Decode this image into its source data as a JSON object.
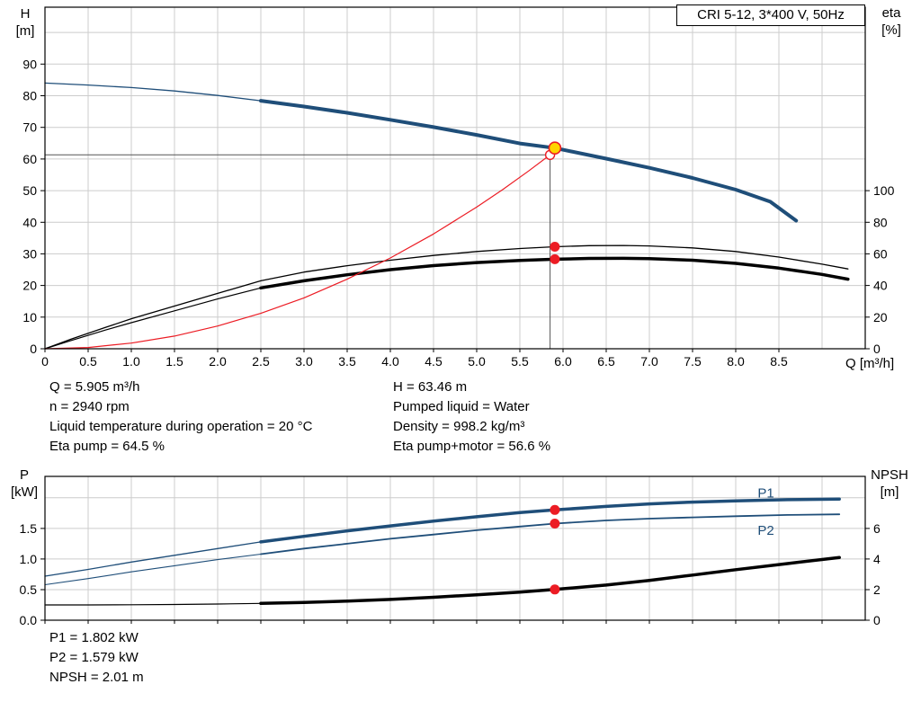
{
  "colors": {
    "blue": "#1f4e79",
    "black": "#000000",
    "red": "#ec1c24",
    "grid": "#cccccc",
    "frame": "#000000",
    "crosshair": "#555555",
    "duty_fill": "#ffd400",
    "white": "#ffffff"
  },
  "top_info": {
    "left": [
      "Q = 5.905 m³/h",
      "n = 2940 rpm",
      "Liquid temperature during operation = 20 °C",
      "Eta pump = 64.5 %"
    ],
    "right": [
      "H = 63.46 m",
      "Pumped liquid = Water",
      "Density = 998.2 kg/m³",
      "Eta pump+motor = 56.6 %"
    ]
  },
  "bottom_info": [
    "P1 = 1.802 kW",
    "P2 = 1.579 kW",
    "NPSH = 2.01 m"
  ],
  "chart_data": [
    {
      "type": "line",
      "title": "CRI 5-12, 3*400 V, 50Hz",
      "x_axis": {
        "label": "Q [m³/h]",
        "min": 0,
        "max": 9.5,
        "grid_step": 0.5,
        "ticks": [
          0,
          0.5,
          1,
          1.5,
          2,
          2.5,
          3,
          3.5,
          4,
          4.5,
          5,
          5.5,
          6,
          6.5,
          7,
          7.5,
          8,
          8.5
        ],
        "tick_labels": [
          "0",
          "0.5",
          "1.0",
          "1.5",
          "2.0",
          "2.5",
          "3.0",
          "3.5",
          "4.0",
          "4.5",
          "5.0",
          "5.5",
          "6.0",
          "6.5",
          "7.0",
          "7.5",
          "8.0",
          "8.5"
        ]
      },
      "left_axis": {
        "label_lines": [
          "H",
          "[m]"
        ],
        "min": 0,
        "max": 108,
        "ticks": [
          0,
          10,
          20,
          30,
          40,
          50,
          60,
          70,
          80,
          90
        ],
        "tick_labels": [
          "0",
          "10",
          "20",
          "30",
          "40",
          "50",
          "60",
          "70",
          "80",
          "90"
        ],
        "grid": [
          10,
          20,
          30,
          40,
          50,
          60,
          70,
          80,
          90,
          100
        ]
      },
      "right_axis": {
        "label_lines": [
          "eta",
          "[%]"
        ],
        "min": 0,
        "max": 216,
        "ticks": [
          0,
          20,
          40,
          60,
          80,
          100
        ],
        "tick_labels": [
          "0",
          "20",
          "40",
          "60",
          "80",
          "100"
        ]
      },
      "series": [
        {
          "name": "qh-curve-lead",
          "axis": "left",
          "color": "blue",
          "width": 1.3,
          "points": [
            [
              0,
              84
            ],
            [
              0.5,
              83.4
            ],
            [
              1,
              82.6
            ],
            [
              1.5,
              81.5
            ],
            [
              2,
              80.1
            ],
            [
              2.5,
              78.4
            ]
          ]
        },
        {
          "name": "qh-curve",
          "axis": "left",
          "color": "blue",
          "width": 4,
          "points": [
            [
              2.5,
              78.4
            ],
            [
              3,
              76.6
            ],
            [
              3.5,
              74.6
            ],
            [
              4,
              72.4
            ],
            [
              4.5,
              70.1
            ],
            [
              5,
              67.6
            ],
            [
              5.5,
              64.9
            ],
            [
              5.905,
              63.46
            ],
            [
              6.5,
              60.1
            ],
            [
              7,
              57.2
            ],
            [
              7.5,
              54
            ],
            [
              8,
              50.3
            ],
            [
              8.4,
              46.5
            ],
            [
              8.7,
              40.5
            ]
          ]
        },
        {
          "name": "eta-pump-curve",
          "axis": "right",
          "color": "black",
          "width": 1.3,
          "points": [
            [
              0,
              0
            ],
            [
              0.3,
              6
            ],
            [
              0.7,
              13.5
            ],
            [
              1,
              19
            ],
            [
              1.5,
              27
            ],
            [
              2,
              35
            ],
            [
              2.5,
              43
            ],
            [
              3,
              48.5
            ],
            [
              3.5,
              52.5
            ],
            [
              4,
              56
            ],
            [
              4.5,
              59
            ],
            [
              5,
              61.5
            ],
            [
              5.5,
              63.4
            ],
            [
              5.905,
              64.5
            ],
            [
              6.3,
              65.2
            ],
            [
              6.7,
              65.3
            ],
            [
              7,
              65
            ],
            [
              7.5,
              63.8
            ],
            [
              8,
              61.5
            ],
            [
              8.5,
              58
            ],
            [
              9,
              53.5
            ],
            [
              9.3,
              50.5
            ]
          ]
        },
        {
          "name": "eta-pump-motor-lead",
          "axis": "right",
          "color": "black",
          "width": 1.2,
          "points": [
            [
              0,
              0
            ],
            [
              0.3,
              5.2
            ],
            [
              0.7,
              11.8
            ],
            [
              1,
              16.5
            ],
            [
              1.5,
              24
            ],
            [
              2,
              31.5
            ],
            [
              2.5,
              38.5
            ]
          ]
        },
        {
          "name": "eta-pump-motor-curve",
          "axis": "right",
          "color": "black",
          "width": 3.5,
          "points": [
            [
              2.5,
              38.5
            ],
            [
              3,
              43
            ],
            [
              3.5,
              46.8
            ],
            [
              4,
              50
            ],
            [
              4.5,
              52.6
            ],
            [
              5,
              54.5
            ],
            [
              5.5,
              55.9
            ],
            [
              5.905,
              56.6
            ],
            [
              6.3,
              57.1
            ],
            [
              6.7,
              57.2
            ],
            [
              7,
              57
            ],
            [
              7.5,
              56
            ],
            [
              8,
              54
            ],
            [
              8.5,
              51
            ],
            [
              9,
              47
            ],
            [
              9.3,
              44
            ]
          ]
        },
        {
          "name": "system-curve",
          "axis": "left",
          "color": "red",
          "width": 1.2,
          "points": [
            [
              0,
              0
            ],
            [
              0.5,
              0.4
            ],
            [
              1,
              1.8
            ],
            [
              1.5,
              4
            ],
            [
              2,
              7.2
            ],
            [
              2.5,
              11.2
            ],
            [
              3,
              16.1
            ],
            [
              3.5,
              22
            ],
            [
              4,
              28.7
            ],
            [
              4.5,
              36.3
            ],
            [
              5,
              44.8
            ],
            [
              5.3,
              50.3
            ],
            [
              5.6,
              56.2
            ],
            [
              5.84,
              61.1
            ],
            [
              5.95,
              63
            ]
          ]
        }
      ],
      "crosshair": {
        "q": 5.85,
        "h": 61.3,
        "v_top": 63.46
      },
      "markers": [
        {
          "name": "system-intersection-marker",
          "axis": "left",
          "q": 5.85,
          "v": 61.3,
          "r": 5,
          "fill": "white",
          "stroke": "red",
          "stroke_width": 1.4
        },
        {
          "name": "duty-point-marker",
          "axis": "left",
          "q": 5.905,
          "v": 63.46,
          "r": 6.5,
          "fill": "duty_fill",
          "stroke": "red",
          "stroke_width": 1.6
        },
        {
          "name": "eta-pump-duty-dot",
          "axis": "right",
          "q": 5.905,
          "v": 64.5,
          "r": 5.5,
          "fill": "red",
          "stroke": "red",
          "stroke_width": 0
        },
        {
          "name": "eta-pump-motor-duty-dot",
          "axis": "right",
          "q": 5.905,
          "v": 56.6,
          "r": 5.5,
          "fill": "red",
          "stroke": "red",
          "stroke_width": 0
        }
      ],
      "series_labels": []
    },
    {
      "type": "line",
      "title": "",
      "x_axis": {
        "label": "",
        "min": 0,
        "max": 9.5,
        "grid_step": 0.5,
        "ticks": [
          0,
          0.5,
          1,
          1.5,
          2,
          2.5,
          3,
          3.5,
          4,
          4.5,
          5,
          5.5,
          6,
          6.5,
          7,
          7.5,
          8,
          8.5,
          9
        ],
        "tick_labels": []
      },
      "left_axis": {
        "label_lines": [
          "P",
          "[kW]"
        ],
        "min": 0,
        "max": 2.35,
        "ticks": [
          0,
          0.5,
          1,
          1.5
        ],
        "tick_labels": [
          "0.0",
          "0.5",
          "1.0",
          "1.5"
        ],
        "grid": [
          0.5,
          1,
          1.5,
          2
        ]
      },
      "right_axis": {
        "label_lines": [
          "NPSH",
          "[m]"
        ],
        "min": 0,
        "max": 9.4,
        "ticks": [
          0,
          2,
          4,
          6
        ],
        "tick_labels": [
          "0",
          "2",
          "4",
          "6"
        ]
      },
      "series": [
        {
          "name": "p1-curve-lead",
          "axis": "left",
          "color": "blue",
          "width": 1.3,
          "points": [
            [
              0,
              0.72
            ],
            [
              0.5,
              0.83
            ],
            [
              1,
              0.95
            ],
            [
              1.5,
              1.06
            ],
            [
              2,
              1.17
            ],
            [
              2.5,
              1.28
            ]
          ]
        },
        {
          "name": "p1-curve",
          "axis": "left",
          "color": "blue",
          "width": 3.5,
          "points": [
            [
              2.5,
              1.28
            ],
            [
              3,
              1.37
            ],
            [
              3.5,
              1.46
            ],
            [
              4,
              1.54
            ],
            [
              4.5,
              1.62
            ],
            [
              5,
              1.69
            ],
            [
              5.5,
              1.76
            ],
            [
              5.905,
              1.802
            ],
            [
              6.5,
              1.86
            ],
            [
              7,
              1.9
            ],
            [
              7.5,
              1.93
            ],
            [
              8,
              1.95
            ],
            [
              8.6,
              1.97
            ],
            [
              9.2,
              1.98
            ]
          ]
        },
        {
          "name": "p2-curve-lead",
          "axis": "left",
          "color": "blue",
          "width": 1.1,
          "points": [
            [
              0,
              0.58
            ],
            [
              0.5,
              0.68
            ],
            [
              1,
              0.79
            ],
            [
              1.5,
              0.89
            ],
            [
              2,
              0.99
            ],
            [
              2.5,
              1.08
            ]
          ]
        },
        {
          "name": "p2-curve",
          "axis": "left",
          "color": "blue",
          "width": 1.8,
          "points": [
            [
              2.5,
              1.08
            ],
            [
              3,
              1.17
            ],
            [
              3.5,
              1.25
            ],
            [
              4,
              1.33
            ],
            [
              4.5,
              1.4
            ],
            [
              5,
              1.47
            ],
            [
              5.5,
              1.53
            ],
            [
              5.905,
              1.579
            ],
            [
              6.5,
              1.63
            ],
            [
              7,
              1.66
            ],
            [
              7.5,
              1.68
            ],
            [
              8,
              1.7
            ],
            [
              8.6,
              1.72
            ],
            [
              9.2,
              1.73
            ]
          ]
        },
        {
          "name": "npsh-curve-lead",
          "axis": "right",
          "color": "black",
          "width": 1.2,
          "points": [
            [
              0,
              1
            ],
            [
              0.5,
              1
            ],
            [
              1,
              1.01
            ],
            [
              1.5,
              1.03
            ],
            [
              2,
              1.06
            ],
            [
              2.5,
              1.1
            ]
          ]
        },
        {
          "name": "npsh-curve",
          "axis": "right",
          "color": "black",
          "width": 3.5,
          "points": [
            [
              2.5,
              1.1
            ],
            [
              3,
              1.16
            ],
            [
              3.5,
              1.25
            ],
            [
              4,
              1.36
            ],
            [
              4.5,
              1.5
            ],
            [
              5,
              1.66
            ],
            [
              5.5,
              1.84
            ],
            [
              5.905,
              2.01
            ],
            [
              6.5,
              2.3
            ],
            [
              7,
              2.6
            ],
            [
              7.5,
              2.95
            ],
            [
              8,
              3.3
            ],
            [
              8.6,
              3.7
            ],
            [
              9.2,
              4.1
            ]
          ]
        }
      ],
      "markers": [
        {
          "name": "p1-duty-dot",
          "axis": "left",
          "q": 5.905,
          "v": 1.802,
          "r": 5.5,
          "fill": "red",
          "stroke": "red",
          "stroke_width": 0
        },
        {
          "name": "p2-duty-dot",
          "axis": "left",
          "q": 5.905,
          "v": 1.579,
          "r": 5.5,
          "fill": "red",
          "stroke": "red",
          "stroke_width": 0
        },
        {
          "name": "npsh-duty-dot",
          "axis": "right",
          "q": 5.905,
          "v": 2.01,
          "r": 5.5,
          "fill": "red",
          "stroke": "red",
          "stroke_width": 0
        }
      ],
      "series_labels": [
        {
          "text": "P1",
          "axis": "left",
          "q": 8.35,
          "v": 2.08,
          "color": "blue"
        },
        {
          "text": "P2",
          "axis": "left",
          "q": 8.35,
          "v": 1.47,
          "color": "blue"
        }
      ]
    }
  ]
}
